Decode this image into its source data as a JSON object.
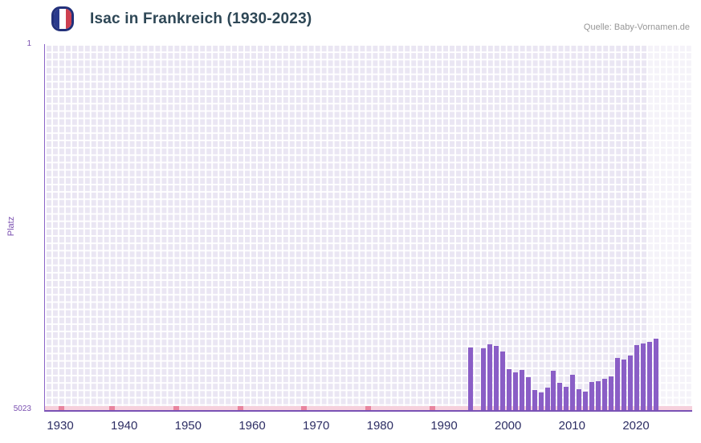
{
  "header": {
    "title": "Isac in Frankreich (1930-2023)",
    "source": "Quelle: Baby-Vornamen.de",
    "flag_icon": "france-flag"
  },
  "chart_data": {
    "type": "bar",
    "title": "Isac in Frankreich (1930-2023)",
    "xlabel": "",
    "ylabel": "Platz",
    "y_axis": {
      "top_label": "1",
      "bottom_label": "5023",
      "min": 1,
      "max": 5023,
      "inverted": true
    },
    "x_ticks": [
      "1930",
      "1940",
      "1950",
      "1960",
      "1970",
      "1980",
      "1990",
      "2000",
      "2010",
      "2020"
    ],
    "x_range": [
      1928,
      2029
    ],
    "grid": true,
    "legend": "none",
    "bars": [
      {
        "year": 1994,
        "rank": 4170
      },
      {
        "year": 1996,
        "rank": 4180
      },
      {
        "year": 1997,
        "rank": 4120
      },
      {
        "year": 1998,
        "rank": 4140
      },
      {
        "year": 1999,
        "rank": 4220
      },
      {
        "year": 2000,
        "rank": 4460
      },
      {
        "year": 2001,
        "rank": 4510
      },
      {
        "year": 2002,
        "rank": 4470
      },
      {
        "year": 2003,
        "rank": 4570
      },
      {
        "year": 2004,
        "rank": 4750
      },
      {
        "year": 2005,
        "rank": 4780
      },
      {
        "year": 2006,
        "rank": 4720
      },
      {
        "year": 2007,
        "rank": 4490
      },
      {
        "year": 2008,
        "rank": 4650
      },
      {
        "year": 2009,
        "rank": 4700
      },
      {
        "year": 2010,
        "rank": 4540
      },
      {
        "year": 2011,
        "rank": 4740
      },
      {
        "year": 2012,
        "rank": 4770
      },
      {
        "year": 2013,
        "rank": 4640
      },
      {
        "year": 2014,
        "rank": 4630
      },
      {
        "year": 2015,
        "rank": 4590
      },
      {
        "year": 2016,
        "rank": 4560
      },
      {
        "year": 2017,
        "rank": 4310
      },
      {
        "year": 2018,
        "rank": 4330
      },
      {
        "year": 2019,
        "rank": 4280
      },
      {
        "year": 2020,
        "rank": 4130
      },
      {
        "year": 2021,
        "rank": 4110
      },
      {
        "year": 2022,
        "rank": 4090
      },
      {
        "year": 2023,
        "rank": 4050
      }
    ],
    "no_data_marker_years": [
      1930,
      1938,
      1948,
      1958,
      1968,
      1978,
      1988
    ],
    "highlight_band": {
      "from_year": 2022,
      "note": "recent-years-band"
    },
    "colors": {
      "bar": "#8a5ec6",
      "plot_background": "#eae6f3",
      "grid": "#ffffff",
      "no_data_band": "#f6d0dc",
      "no_data_marker": "#e9849e",
      "axis_line": "#7a52b5",
      "x_tick_label": "#2d2e64",
      "y_tick_label": "#7a4fb0",
      "title": "#2e4756",
      "source": "#969696",
      "highlight_band": "rgba(255,255,255,0.5)"
    }
  }
}
